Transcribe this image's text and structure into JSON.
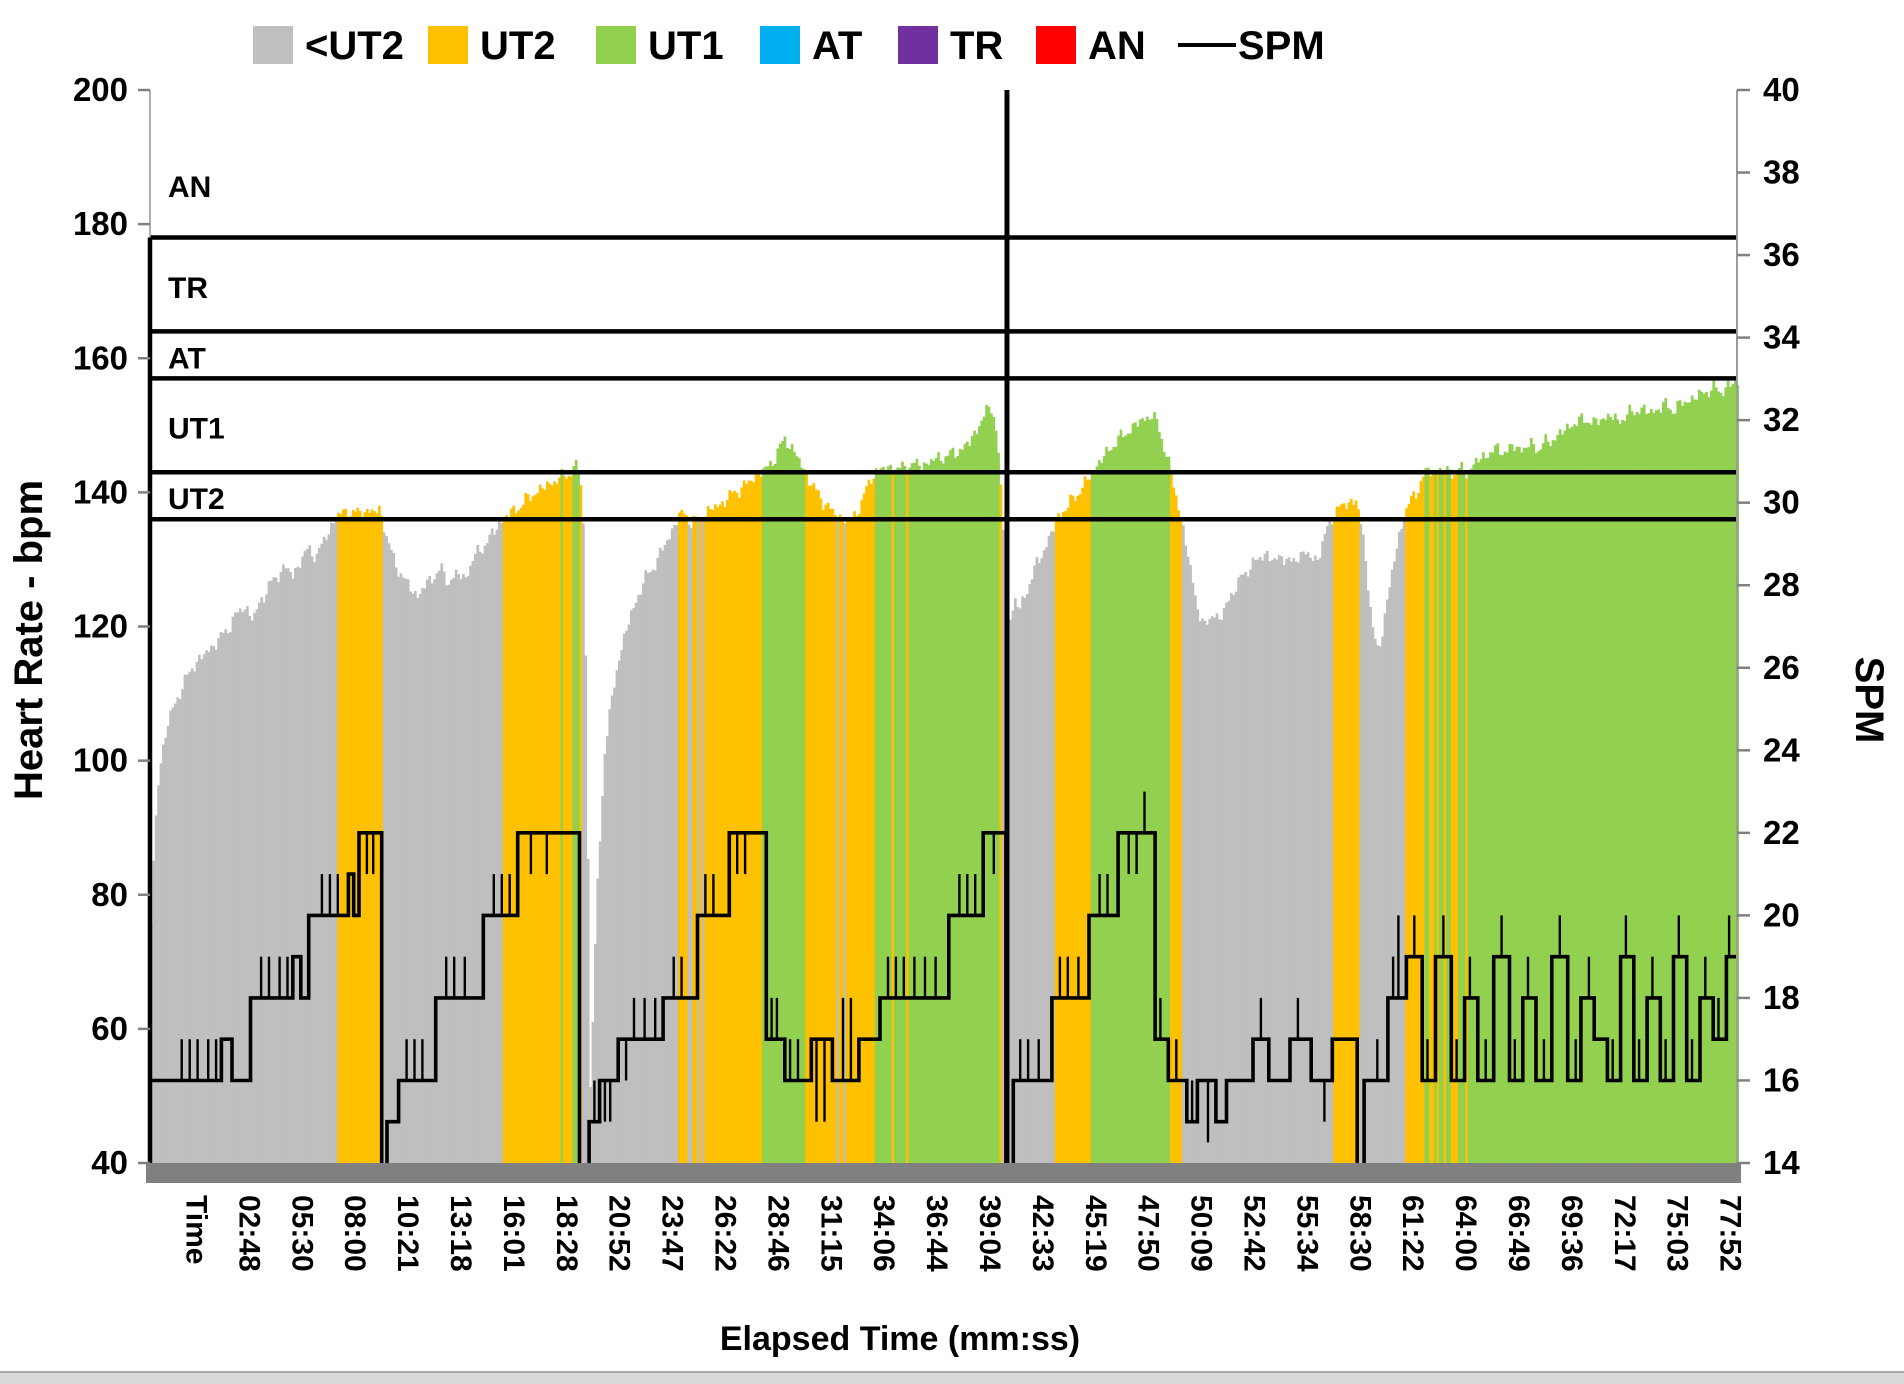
{
  "legend": {
    "items": [
      {
        "label": "<UT2",
        "color": "#BFBFBF",
        "swatch": "square"
      },
      {
        "label": "UT2",
        "color": "#FFC000",
        "swatch": "square"
      },
      {
        "label": "UT1",
        "color": "#92D050",
        "swatch": "square"
      },
      {
        "label": "AT",
        "color": "#00B0F0",
        "swatch": "square"
      },
      {
        "label": "TR",
        "color": "#7030A0",
        "swatch": "square"
      },
      {
        "label": "AN",
        "color": "#FF0000",
        "swatch": "square"
      },
      {
        "label": "SPM",
        "color": "#000000",
        "swatch": "line"
      }
    ]
  },
  "chart_data": {
    "type": "area+line",
    "x_axis": {
      "title": "Elapsed Time (mm:ss)",
      "labels": [
        "Time",
        "02:48",
        "05:30",
        "08:00",
        "10:21",
        "13:18",
        "16:01",
        "18:28",
        "20:52",
        "23:47",
        "26:22",
        "28:46",
        "31:15",
        "34:06",
        "36:44",
        "39:04",
        "42:33",
        "45:19",
        "47:50",
        "50:09",
        "52:42",
        "55:34",
        "58:30",
        "61:22",
        "64:00",
        "66:49",
        "69:36",
        "72:17",
        "75:03",
        "77:52"
      ]
    },
    "y_left": {
      "title": "Heart Rate - bpm",
      "min": 40,
      "max": 200,
      "step": 20
    },
    "y_right": {
      "title": "SPM",
      "min": 14,
      "max": 40,
      "step": 2
    },
    "zones": [
      {
        "name": "AN",
        "threshold_bpm": 178,
        "label_bpm": 185.5
      },
      {
        "name": "TR",
        "threshold_bpm": 164,
        "label_bpm": 170.5
      },
      {
        "name": "AT",
        "threshold_bpm": 157,
        "label_bpm": 160.0
      },
      {
        "name": "UT1",
        "threshold_bpm": 143,
        "label_bpm": 149.5
      },
      {
        "name": "UT2",
        "threshold_bpm": 136,
        "label_bpm": 139.0
      }
    ],
    "zone_fill_colors": {
      "below_ut2": "#BFBFBF",
      "ut2": "#FFC000",
      "ut1": "#92D050",
      "at": "#00B0F0",
      "tr": "#7030A0",
      "an": "#FF0000"
    },
    "divider_label_index": 15.7,
    "hr_points": [
      [
        -0.5,
        70
      ],
      [
        -0.42,
        88
      ],
      [
        -0.32,
        99
      ],
      [
        -0.15,
        106
      ],
      [
        0.05,
        110
      ],
      [
        0.3,
        114
      ],
      [
        0.55,
        116
      ],
      [
        0.8,
        118
      ],
      [
        1.0,
        120
      ],
      [
        1.15,
        122
      ],
      [
        1.3,
        123
      ],
      [
        1.45,
        121
      ],
      [
        1.6,
        124
      ],
      [
        1.75,
        126
      ],
      [
        1.9,
        127.5
      ],
      [
        2.05,
        129
      ],
      [
        2.2,
        127.5
      ],
      [
        2.35,
        130
      ],
      [
        2.5,
        131.5
      ],
      [
        2.65,
        130.5
      ],
      [
        2.8,
        133
      ],
      [
        2.9,
        134.5
      ],
      [
        3.0,
        136.2
      ],
      [
        3.1,
        136.8
      ],
      [
        3.25,
        137.2
      ],
      [
        3.4,
        136.8
      ],
      [
        3.55,
        137.3
      ],
      [
        3.7,
        137
      ],
      [
        3.85,
        137.5
      ],
      [
        3.95,
        134
      ],
      [
        4.1,
        130
      ],
      [
        4.3,
        127
      ],
      [
        4.55,
        124.5
      ],
      [
        4.7,
        126
      ],
      [
        4.85,
        127.5
      ],
      [
        5.0,
        128.5
      ],
      [
        5.15,
        126.5
      ],
      [
        5.3,
        128
      ],
      [
        5.45,
        127
      ],
      [
        5.6,
        130
      ],
      [
        5.8,
        132
      ],
      [
        6.0,
        134
      ],
      [
        6.1,
        135.5
      ],
      [
        6.25,
        136.5
      ],
      [
        6.5,
        138
      ],
      [
        6.7,
        139.5
      ],
      [
        6.9,
        140.5
      ],
      [
        7.1,
        141.5
      ],
      [
        7.3,
        142.3
      ],
      [
        7.45,
        143
      ],
      [
        7.55,
        143.8
      ],
      [
        7.62,
        143.5
      ],
      [
        7.68,
        138
      ],
      [
        7.72,
        126
      ],
      [
        7.78,
        85
      ],
      [
        7.82,
        50
      ],
      [
        7.95,
        80
      ],
      [
        8.1,
        102
      ],
      [
        8.35,
        115
      ],
      [
        8.6,
        122
      ],
      [
        8.85,
        127
      ],
      [
        9.1,
        130
      ],
      [
        9.25,
        132.5
      ],
      [
        9.4,
        134.8
      ],
      [
        9.5,
        136.5
      ],
      [
        9.6,
        137
      ],
      [
        9.72,
        135.5
      ],
      [
        9.85,
        135.7
      ],
      [
        9.95,
        136.5
      ],
      [
        10.1,
        137.5
      ],
      [
        10.25,
        138
      ],
      [
        10.4,
        139
      ],
      [
        10.55,
        140
      ],
      [
        10.75,
        141
      ],
      [
        10.95,
        142.5
      ],
      [
        11.15,
        143.5
      ],
      [
        11.3,
        145
      ],
      [
        11.4,
        146.5
      ],
      [
        11.5,
        148
      ],
      [
        11.6,
        147
      ],
      [
        11.72,
        145.5
      ],
      [
        11.85,
        143.5
      ],
      [
        11.95,
        142
      ],
      [
        12.1,
        140
      ],
      [
        12.25,
        138.5
      ],
      [
        12.4,
        137
      ],
      [
        12.55,
        136.3
      ],
      [
        12.7,
        135.7
      ],
      [
        12.82,
        136.5
      ],
      [
        12.95,
        138.5
      ],
      [
        13.05,
        140.5
      ],
      [
        13.15,
        142.5
      ],
      [
        13.25,
        143.4
      ],
      [
        13.35,
        143.4
      ],
      [
        13.5,
        143.7
      ],
      [
        13.65,
        143.4
      ],
      [
        13.8,
        143.9
      ],
      [
        13.95,
        144.2
      ],
      [
        14.1,
        144
      ],
      [
        14.3,
        144.8
      ],
      [
        14.5,
        145.3
      ],
      [
        14.7,
        145.8
      ],
      [
        14.85,
        146.5
      ],
      [
        15.0,
        147.5
      ],
      [
        15.1,
        149
      ],
      [
        15.2,
        150.5
      ],
      [
        15.3,
        151.8
      ],
      [
        15.42,
        153
      ],
      [
        15.52,
        148
      ],
      [
        15.6,
        138
      ],
      [
        15.68,
        128
      ],
      [
        15.76,
        121
      ],
      [
        15.85,
        124
      ],
      [
        15.95,
        122.5
      ],
      [
        16.1,
        126
      ],
      [
        16.25,
        129
      ],
      [
        16.4,
        131.5
      ],
      [
        16.55,
        134
      ],
      [
        16.65,
        136.3
      ],
      [
        16.8,
        137.5
      ],
      [
        16.95,
        139
      ],
      [
        17.1,
        140.5
      ],
      [
        17.2,
        141.5
      ],
      [
        17.32,
        143.3
      ],
      [
        17.45,
        144.5
      ],
      [
        17.6,
        146
      ],
      [
        17.75,
        147.5
      ],
      [
        17.9,
        148.5
      ],
      [
        18.05,
        149.5
      ],
      [
        18.2,
        150.5
      ],
      [
        18.35,
        151.2
      ],
      [
        18.45,
        151.5
      ],
      [
        18.55,
        150
      ],
      [
        18.65,
        147.5
      ],
      [
        18.75,
        144.5
      ],
      [
        18.85,
        141
      ],
      [
        18.95,
        137.5
      ],
      [
        19.05,
        134
      ],
      [
        19.15,
        129
      ],
      [
        19.3,
        123
      ],
      [
        19.45,
        119.5
      ],
      [
        19.6,
        122.5
      ],
      [
        19.72,
        120.5
      ],
      [
        19.85,
        123.5
      ],
      [
        20.0,
        125.5
      ],
      [
        20.15,
        127.5
      ],
      [
        20.3,
        129
      ],
      [
        20.45,
        130
      ],
      [
        20.6,
        131
      ],
      [
        20.75,
        129.5
      ],
      [
        20.9,
        130.8
      ],
      [
        21.05,
        129.2
      ],
      [
        21.2,
        130.5
      ],
      [
        21.35,
        131
      ],
      [
        21.5,
        129.8
      ],
      [
        21.62,
        131
      ],
      [
        21.75,
        134.5
      ],
      [
        21.85,
        136.5
      ],
      [
        22.0,
        137.8
      ],
      [
        22.15,
        138.5
      ],
      [
        22.3,
        138.8
      ],
      [
        22.42,
        134
      ],
      [
        22.52,
        127
      ],
      [
        22.62,
        119
      ],
      [
        22.72,
        116
      ],
      [
        22.87,
        123
      ],
      [
        23.0,
        129
      ],
      [
        23.1,
        133
      ],
      [
        23.2,
        136.5
      ],
      [
        23.35,
        139
      ],
      [
        23.5,
        141
      ],
      [
        23.6,
        142.8
      ],
      [
        23.68,
        143.5
      ],
      [
        23.78,
        142.6
      ],
      [
        23.88,
        143.6
      ],
      [
        23.98,
        142.8
      ],
      [
        24.08,
        143.4
      ],
      [
        24.18,
        142.7
      ],
      [
        24.28,
        143.5
      ],
      [
        24.42,
        143
      ],
      [
        24.56,
        144.5
      ],
      [
        24.7,
        145.3
      ],
      [
        24.85,
        146
      ],
      [
        25.0,
        146.5
      ],
      [
        25.15,
        146
      ],
      [
        25.3,
        147
      ],
      [
        25.45,
        146.3
      ],
      [
        25.6,
        147.2
      ],
      [
        25.75,
        146.5
      ],
      [
        25.9,
        147.5
      ],
      [
        26.05,
        148
      ],
      [
        26.2,
        149
      ],
      [
        26.35,
        150
      ],
      [
        26.5,
        150.5
      ],
      [
        26.65,
        151
      ],
      [
        26.8,
        150.2
      ],
      [
        26.95,
        151
      ],
      [
        27.1,
        151.5
      ],
      [
        27.25,
        150.5
      ],
      [
        27.4,
        151.5
      ],
      [
        27.55,
        152
      ],
      [
        27.7,
        152.5
      ],
      [
        27.85,
        151.8
      ],
      [
        28.0,
        152.5
      ],
      [
        28.15,
        153
      ],
      [
        28.3,
        152.3
      ],
      [
        28.45,
        153.2
      ],
      [
        28.6,
        153.8
      ],
      [
        28.75,
        154.3
      ],
      [
        28.9,
        155
      ],
      [
        29.05,
        155.5
      ],
      [
        29.2,
        155
      ],
      [
        29.35,
        156
      ],
      [
        29.5,
        156.3
      ]
    ],
    "spm_steps": [
      [
        -0.5,
        16
      ],
      [
        0.85,
        17
      ],
      [
        1.05,
        16
      ],
      [
        1.4,
        18
      ],
      [
        2.2,
        19
      ],
      [
        2.35,
        18
      ],
      [
        2.5,
        20
      ],
      [
        3.25,
        21
      ],
      [
        3.35,
        20
      ],
      [
        3.45,
        22
      ],
      [
        3.88,
        null
      ],
      [
        3.98,
        15
      ],
      [
        4.2,
        16
      ],
      [
        4.9,
        18
      ],
      [
        5.8,
        20
      ],
      [
        6.45,
        22
      ],
      [
        7.62,
        null
      ],
      [
        7.8,
        15
      ],
      [
        8.0,
        16
      ],
      [
        8.35,
        17
      ],
      [
        9.2,
        18
      ],
      [
        9.85,
        20
      ],
      [
        10.45,
        22
      ],
      [
        11.15,
        17
      ],
      [
        11.5,
        16
      ],
      [
        12.0,
        17
      ],
      [
        12.4,
        16
      ],
      [
        12.9,
        17
      ],
      [
        13.3,
        18
      ],
      [
        14.6,
        20
      ],
      [
        15.25,
        22
      ],
      [
        15.68,
        null
      ],
      [
        15.82,
        16
      ],
      [
        16.55,
        18
      ],
      [
        17.25,
        20
      ],
      [
        17.8,
        22
      ],
      [
        18.5,
        17
      ],
      [
        18.75,
        16
      ],
      [
        19.1,
        15
      ],
      [
        19.3,
        16
      ],
      [
        19.65,
        15
      ],
      [
        19.85,
        16
      ],
      [
        20.35,
        17
      ],
      [
        20.65,
        16
      ],
      [
        21.05,
        17
      ],
      [
        21.45,
        16
      ],
      [
        21.85,
        17
      ],
      [
        22.32,
        null
      ],
      [
        22.45,
        16
      ],
      [
        22.9,
        18
      ],
      [
        23.25,
        19
      ],
      [
        23.55,
        16
      ],
      [
        23.8,
        19
      ],
      [
        24.1,
        16
      ],
      [
        24.35,
        18
      ],
      [
        24.6,
        16
      ],
      [
        24.9,
        19
      ],
      [
        25.2,
        16
      ],
      [
        25.45,
        18
      ],
      [
        25.7,
        16
      ],
      [
        26.0,
        19
      ],
      [
        26.3,
        16
      ],
      [
        26.55,
        18
      ],
      [
        26.8,
        17
      ],
      [
        27.05,
        16
      ],
      [
        27.3,
        19
      ],
      [
        27.55,
        16
      ],
      [
        27.8,
        18
      ],
      [
        28.05,
        16
      ],
      [
        28.3,
        19
      ],
      [
        28.55,
        16
      ],
      [
        28.8,
        18
      ],
      [
        29.05,
        17
      ],
      [
        29.3,
        19
      ]
    ],
    "spm_spikes": [
      [
        0.1,
        17
      ],
      [
        0.25,
        17
      ],
      [
        0.4,
        17
      ],
      [
        0.6,
        17
      ],
      [
        0.75,
        17
      ],
      [
        1.6,
        19
      ],
      [
        1.75,
        19
      ],
      [
        1.95,
        19
      ],
      [
        2.1,
        19
      ],
      [
        2.75,
        21
      ],
      [
        2.9,
        21
      ],
      [
        3.05,
        21
      ],
      [
        3.6,
        21
      ],
      [
        3.72,
        21
      ],
      [
        4.35,
        17
      ],
      [
        4.5,
        17
      ],
      [
        4.65,
        17
      ],
      [
        5.1,
        19
      ],
      [
        5.25,
        19
      ],
      [
        5.45,
        19
      ],
      [
        6.0,
        21
      ],
      [
        6.15,
        21
      ],
      [
        6.3,
        21
      ],
      [
        6.7,
        21
      ],
      [
        7.0,
        21
      ],
      [
        7.9,
        16
      ],
      [
        8.1,
        15
      ],
      [
        8.2,
        15
      ],
      [
        8.5,
        16
      ],
      [
        8.65,
        18
      ],
      [
        8.85,
        18
      ],
      [
        9.05,
        18
      ],
      [
        9.4,
        19
      ],
      [
        9.55,
        19
      ],
      [
        10.0,
        21
      ],
      [
        10.15,
        21
      ],
      [
        10.6,
        21
      ],
      [
        10.75,
        21
      ],
      [
        11.25,
        18
      ],
      [
        11.35,
        18
      ],
      [
        11.6,
        17
      ],
      [
        11.75,
        17
      ],
      [
        12.1,
        15
      ],
      [
        12.25,
        15
      ],
      [
        12.6,
        18
      ],
      [
        12.75,
        18
      ],
      [
        13.45,
        19
      ],
      [
        13.6,
        19
      ],
      [
        13.75,
        19
      ],
      [
        13.95,
        19
      ],
      [
        14.15,
        19
      ],
      [
        14.35,
        19
      ],
      [
        14.8,
        21
      ],
      [
        14.95,
        21
      ],
      [
        15.1,
        21
      ],
      [
        15.45,
        21
      ],
      [
        15.95,
        17
      ],
      [
        16.1,
        17
      ],
      [
        16.3,
        17
      ],
      [
        16.7,
        19
      ],
      [
        16.85,
        19
      ],
      [
        17.05,
        19
      ],
      [
        17.45,
        21
      ],
      [
        17.6,
        21
      ],
      [
        18.0,
        21
      ],
      [
        18.15,
        21
      ],
      [
        18.3,
        23
      ],
      [
        18.6,
        18
      ],
      [
        18.9,
        17
      ],
      [
        19.2,
        16
      ],
      [
        19.5,
        14.5
      ],
      [
        20.0,
        16
      ],
      [
        20.5,
        18
      ],
      [
        21.2,
        18
      ],
      [
        21.7,
        15
      ],
      [
        22.7,
        17
      ],
      [
        23.0,
        19
      ],
      [
        23.1,
        20
      ],
      [
        23.4,
        20
      ],
      [
        23.65,
        17
      ],
      [
        23.95,
        20
      ],
      [
        24.2,
        17
      ],
      [
        24.45,
        19
      ],
      [
        24.75,
        17
      ],
      [
        25.05,
        20
      ],
      [
        25.3,
        17
      ],
      [
        25.55,
        19
      ],
      [
        25.85,
        17
      ],
      [
        26.15,
        20
      ],
      [
        26.45,
        17
      ],
      [
        26.7,
        19
      ],
      [
        27.15,
        17
      ],
      [
        27.4,
        20
      ],
      [
        27.65,
        17
      ],
      [
        27.9,
        19
      ],
      [
        28.15,
        17
      ],
      [
        28.4,
        20
      ],
      [
        28.65,
        17
      ],
      [
        28.9,
        19
      ],
      [
        29.15,
        18
      ],
      [
        29.35,
        20
      ]
    ]
  }
}
